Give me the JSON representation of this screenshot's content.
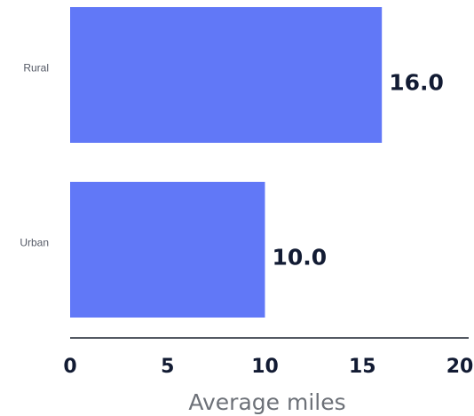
{
  "chart_data": {
    "type": "bar",
    "orientation": "horizontal",
    "categories": [
      "Rural",
      "Urban"
    ],
    "values": [
      16.0,
      10.0
    ],
    "value_labels": [
      "16.0",
      "10.0"
    ],
    "xlabel": "Average miles",
    "xlim": [
      0,
      20
    ],
    "xticks": [
      0,
      5,
      10,
      15,
      20
    ],
    "xtick_labels": [
      "0",
      "5",
      "10",
      "15",
      "20"
    ],
    "bar_color": "#6178f7",
    "grid": false
  }
}
